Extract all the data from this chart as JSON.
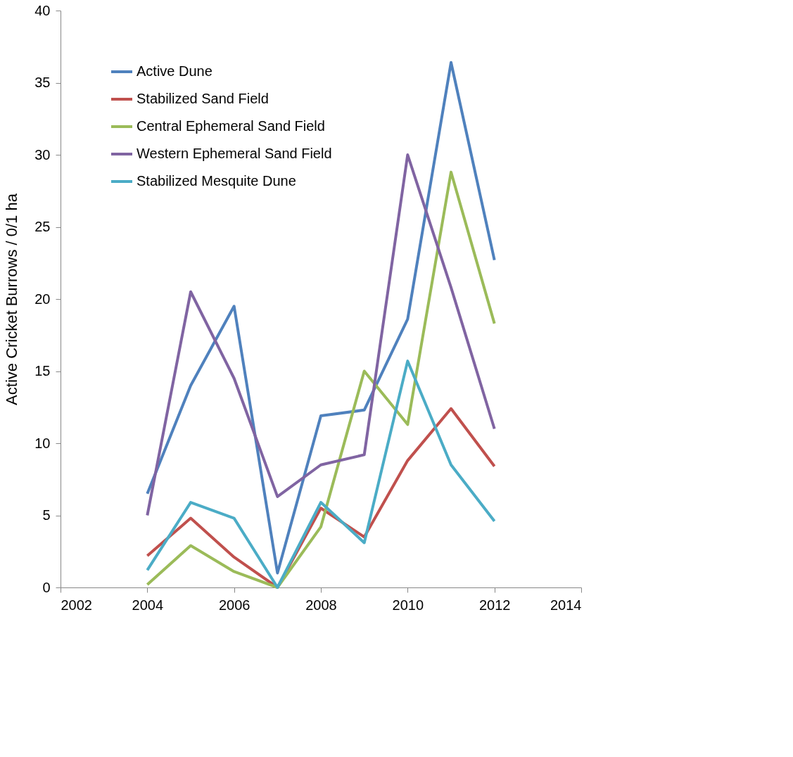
{
  "chart_data": {
    "type": "line",
    "ylabel": "Active Cricket Burrows / 0/1 ha",
    "x": [
      2004,
      2005,
      2006,
      2007,
      2008,
      2009,
      2010,
      2011,
      2012
    ],
    "xlim": [
      2002,
      2014
    ],
    "xticks": [
      2002,
      2004,
      2006,
      2008,
      2010,
      2012,
      2014
    ],
    "ylim": [
      0,
      40
    ],
    "yticks": [
      0,
      5,
      10,
      15,
      20,
      25,
      30,
      35,
      40
    ],
    "grid": false,
    "legend": "top left",
    "marker": "none",
    "line_style": "solid",
    "series": [
      {
        "name": "Active Dune",
        "color": "#4f81bd",
        "values": [
          6.5,
          14.0,
          19.5,
          1.0,
          11.9,
          12.3,
          18.6,
          36.4,
          22.7
        ]
      },
      {
        "name": "Stabilized Sand Field",
        "color": "#c0504d",
        "values": [
          2.2,
          4.8,
          2.1,
          0,
          5.5,
          3.5,
          8.8,
          12.4,
          8.4
        ]
      },
      {
        "name": "Central Ephemeral Sand Field",
        "color": "#9bbb59",
        "values": [
          0.2,
          2.9,
          1.1,
          0,
          4.2,
          15.0,
          11.3,
          28.8,
          18.3
        ]
      },
      {
        "name": "Western Ephemeral Sand Field",
        "color": "#8064a2",
        "values": [
          5.0,
          20.5,
          14.5,
          6.3,
          8.5,
          9.2,
          30.0,
          20.8,
          11.0
        ]
      },
      {
        "name": "Stabilized Mesquite Dune",
        "color": "#4bacc6",
        "values": [
          1.2,
          5.9,
          4.8,
          0,
          5.9,
          3.1,
          15.7,
          8.5,
          4.6
        ]
      }
    ]
  }
}
